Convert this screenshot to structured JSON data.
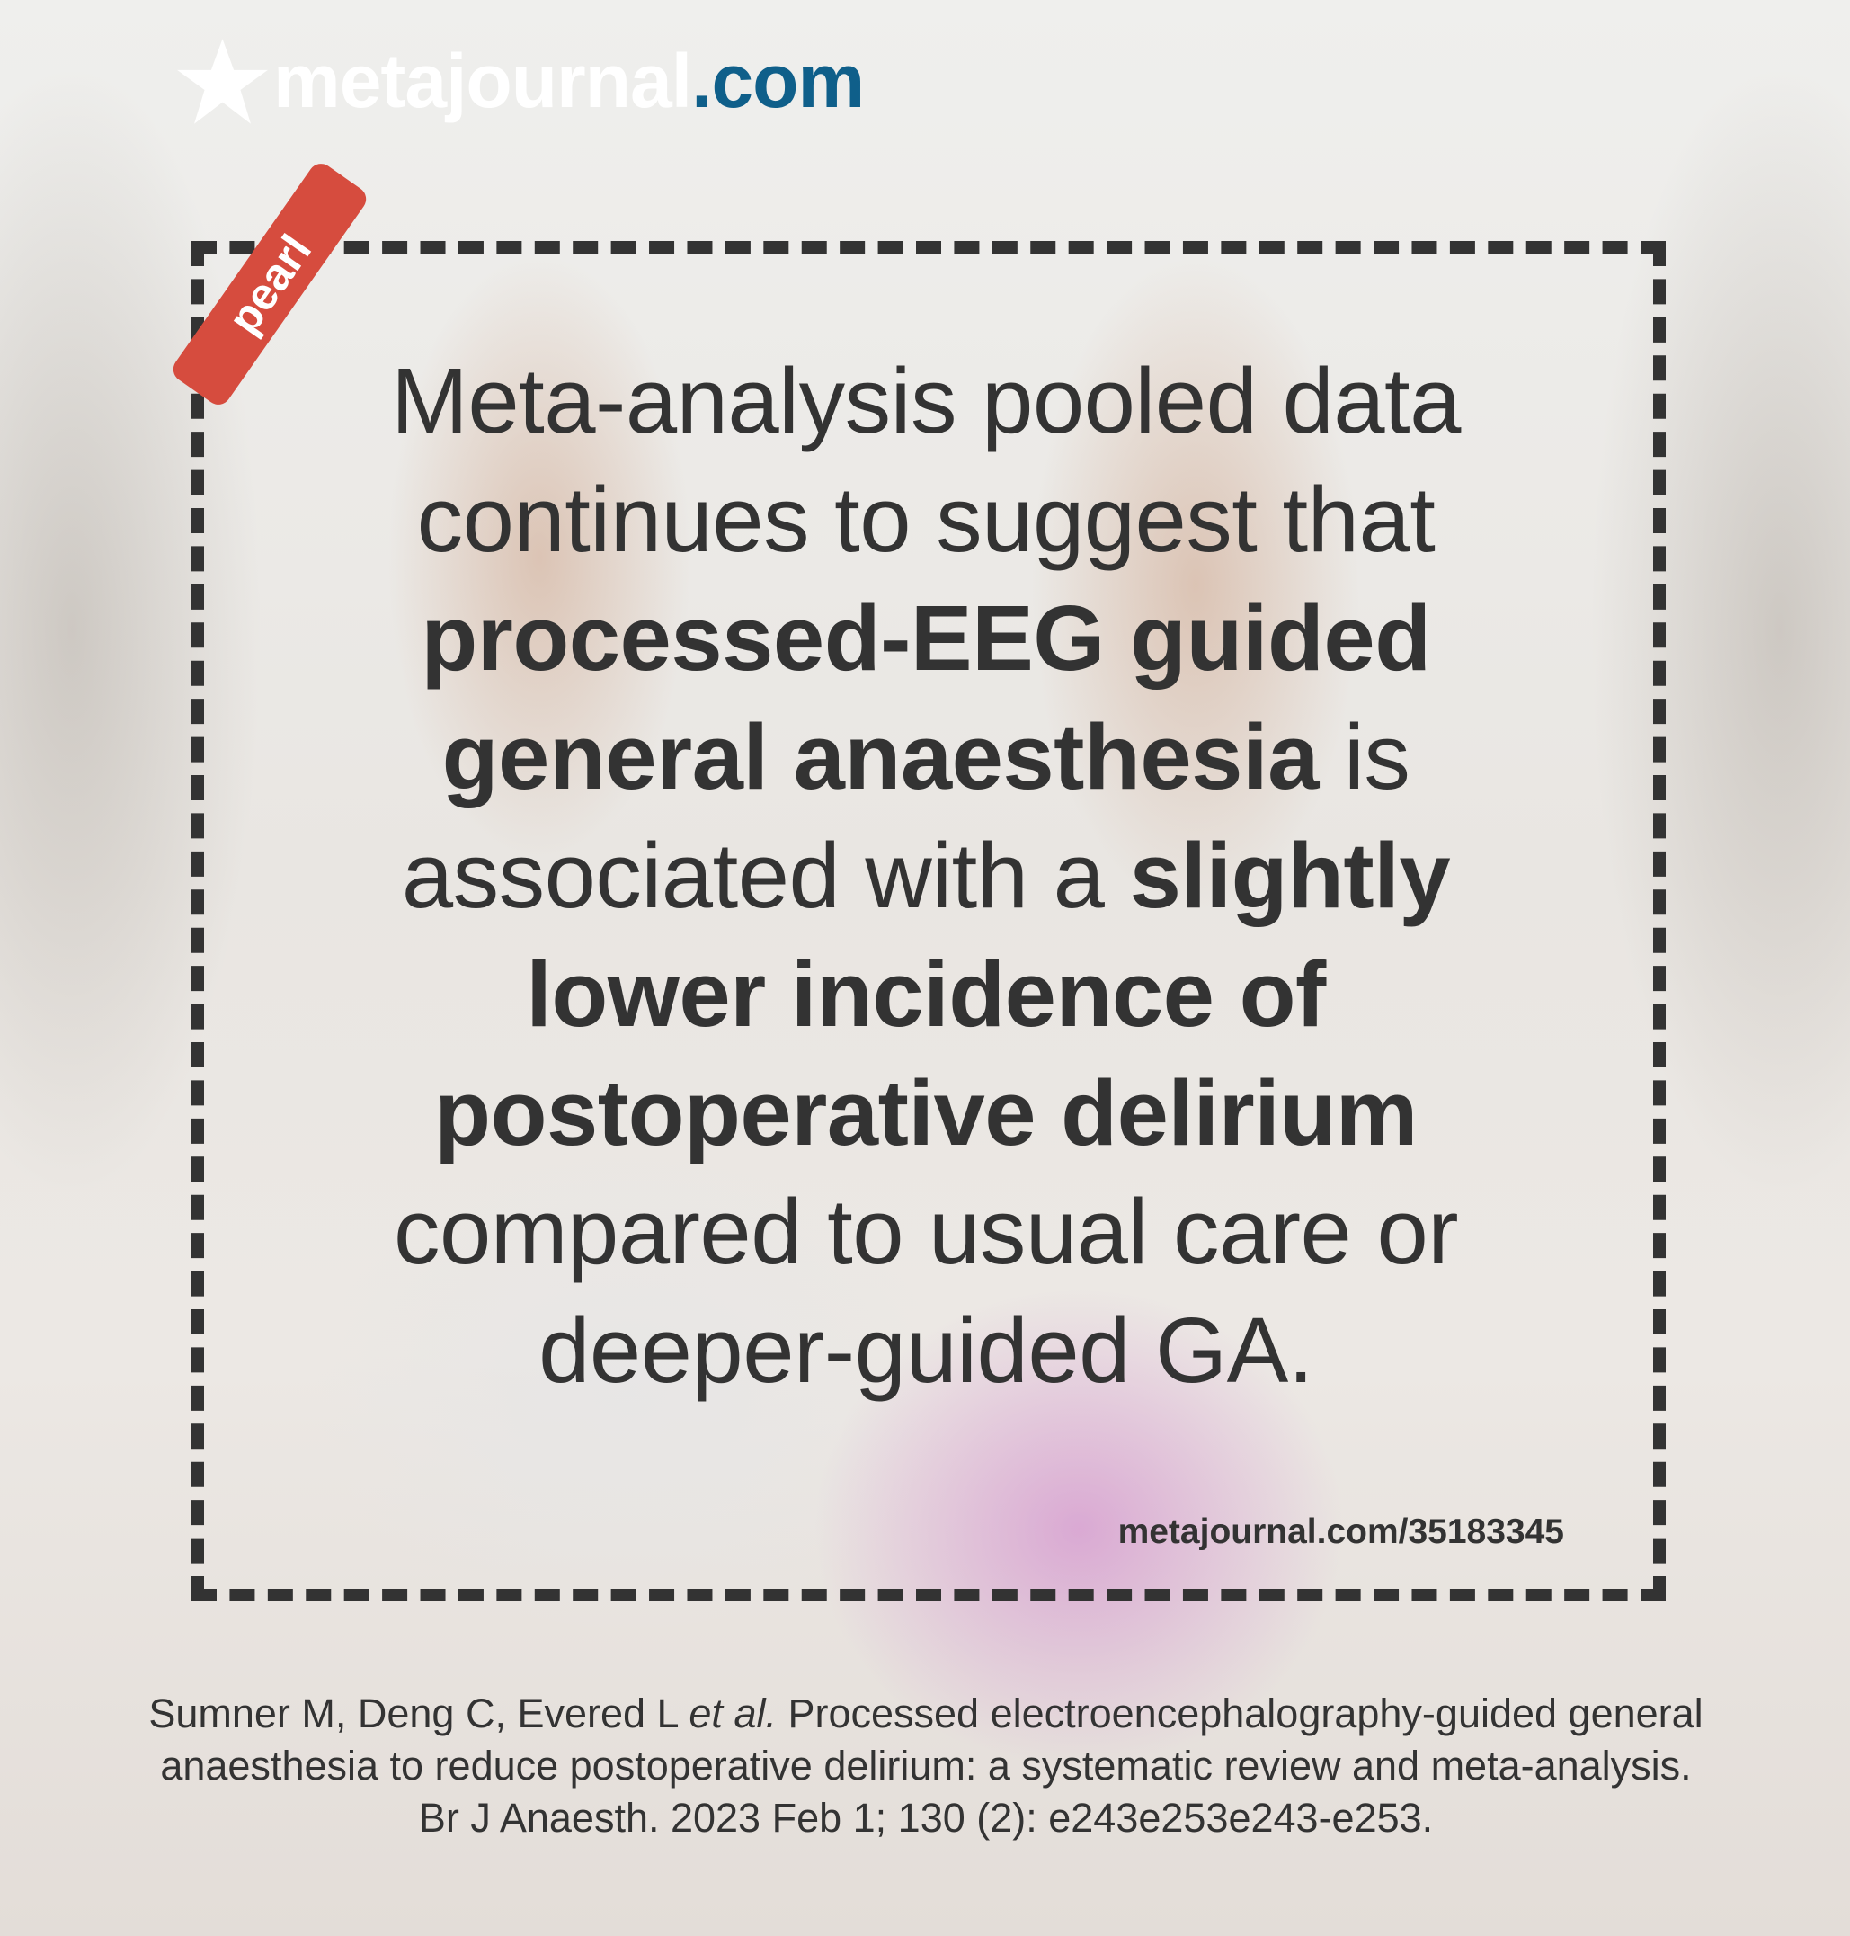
{
  "logo": {
    "name_part": "metajournal",
    "tld_part": ".com",
    "icon": "star-icon",
    "accent_color": "#0f5f8a"
  },
  "tag": {
    "label": "pearl",
    "color": "#d64c3e"
  },
  "quote": {
    "s1": "Meta-analysis pooled data continues to suggest that ",
    "b1": "processed-EEG guided general anaesthesia",
    "s2": " is associated with a ",
    "b2": "slightly lower incidence of postoperative delirium",
    "s3": " compared to usual care or deeper-guided GA."
  },
  "link": "metajournal.com/35183345",
  "citation": {
    "authors": "Sumner M, Deng C, Evered L ",
    "etal": "et al.",
    "rest": " Processed electroencephalography-guided general anaesthesia to reduce postoperative delirium: a systematic review and meta-analysis. Br J Anaesth. 2023 Feb 1; 130 (2): e243e253e243-e253."
  }
}
